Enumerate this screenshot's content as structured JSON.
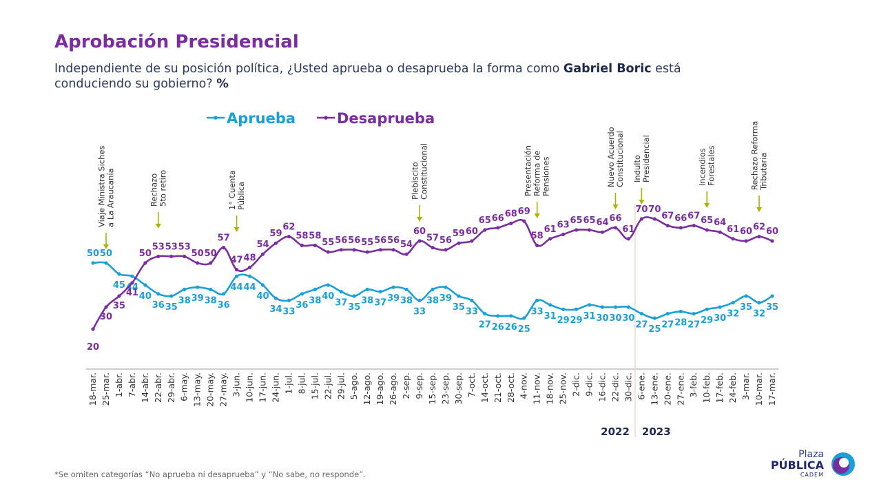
{
  "header": {
    "title": "Aprobación Presidencial",
    "subtitle_pre": "Independiente de su posición política, ¿Usted aprueba o desaprueba la forma como ",
    "subtitle_bold": "Gabriel Boric",
    "subtitle_post": " está conduciendo su gobierno? ",
    "subtitle_pct": "%"
  },
  "footnote": "*Se omiten categorías “No aprueba ni desaprueba” y “No sabe, no responde”.",
  "logo": {
    "line1": "Plaza",
    "line2": "PÚBLICA",
    "line3": "CADEM"
  },
  "chart_data": {
    "type": "line",
    "title": "Aprobación Presidencial",
    "ylim": [
      15,
      75
    ],
    "grid": false,
    "legend_placement": "top-left",
    "categories": [
      "18-mar.",
      "25-mar.",
      "1-abr.",
      "7-abr.",
      "14-abr.",
      "22-abr.",
      "29-abr.",
      "6-may.",
      "13-may.",
      "20-may.",
      "27-may.",
      "3-jun.",
      "10-jun.",
      "17-jun.",
      "24-jun.",
      "1-jul.",
      "8-jul.",
      "15-jul.",
      "22-jul.",
      "29-jul.",
      "5-ago.",
      "12-ago.",
      "19-ago.",
      "26-ago.",
      "2-sep.",
      "9-sep.",
      "15-sep.",
      "23-sep.",
      "30-sep.",
      "7-oct.",
      "14-oct.",
      "21-oct.",
      "28-oct.",
      "4-nov.",
      "11-nov.",
      "18-nov.",
      "25-nov.",
      "2-dic.",
      "9-dic.",
      "16-dic.",
      "22-dic.",
      "30-dic.",
      "6-ene.",
      "13-ene.",
      "20-ene.",
      "27-ene.",
      "3-feb.",
      "10-feb.",
      "17-feb.",
      "24-feb.",
      "3-mar.",
      "10-mar.",
      "17-mar."
    ],
    "series": [
      {
        "name": "Aprueba",
        "color": "#1a9fd6",
        "values": [
          50,
          50,
          45,
          44,
          40,
          36,
          35,
          38,
          39,
          38,
          36,
          44,
          44,
          40,
          34,
          33,
          36,
          38,
          40,
          37,
          35,
          38,
          37,
          39,
          38,
          33,
          38,
          39,
          35,
          33,
          27,
          26,
          26,
          25,
          33,
          31,
          29,
          29,
          31,
          30,
          30,
          30,
          27,
          25,
          27,
          28,
          27,
          29,
          30,
          32,
          35,
          32,
          35
        ]
      },
      {
        "name": "Desaprueba",
        "color": "#7a2d9e",
        "values": [
          20,
          30,
          35,
          41,
          50,
          53,
          53,
          53,
          50,
          50,
          57,
          47,
          48,
          54,
          59,
          62,
          58,
          58,
          55,
          56,
          56,
          55,
          56,
          56,
          54,
          60,
          57,
          56,
          59,
          60,
          65,
          66,
          68,
          69,
          58,
          61,
          63,
          65,
          65,
          64,
          66,
          61,
          70,
          70,
          67,
          66,
          67,
          65,
          64,
          61,
          60,
          62,
          60
        ]
      }
    ],
    "years": [
      {
        "label": "2022"
      },
      {
        "label": "2023"
      }
    ],
    "year_divider_after": "30-dic.",
    "annotations": [
      {
        "at": "25-mar.",
        "lines": [
          "Viaje Ministra Siches",
          "a La Araucanía"
        ]
      },
      {
        "at": "22-abr.",
        "lines": [
          "Rechazo",
          "5to retiro"
        ]
      },
      {
        "at": "3-jun.",
        "lines": [
          "1° Cuenta",
          "Pública"
        ]
      },
      {
        "at": "9-sep.",
        "lines": [
          "Plebiscito",
          "Constitucional"
        ]
      },
      {
        "at": "11-nov.",
        "lines": [
          "Presentación",
          "Reforma de",
          "Pensiones"
        ]
      },
      {
        "at": "22-dic.",
        "lines": [
          "Nuevo Acuerdo",
          "Constitucional"
        ]
      },
      {
        "at": "6-ene.",
        "lines": [
          "Indulto",
          "Presidencial"
        ]
      },
      {
        "at": "10-feb.",
        "lines": [
          "Incendios",
          "Forestales"
        ]
      },
      {
        "at": "10-mar.",
        "lines": [
          "Rechazo Reforma",
          "Tributaria"
        ]
      }
    ],
    "annotation_color": "#a8b400"
  }
}
